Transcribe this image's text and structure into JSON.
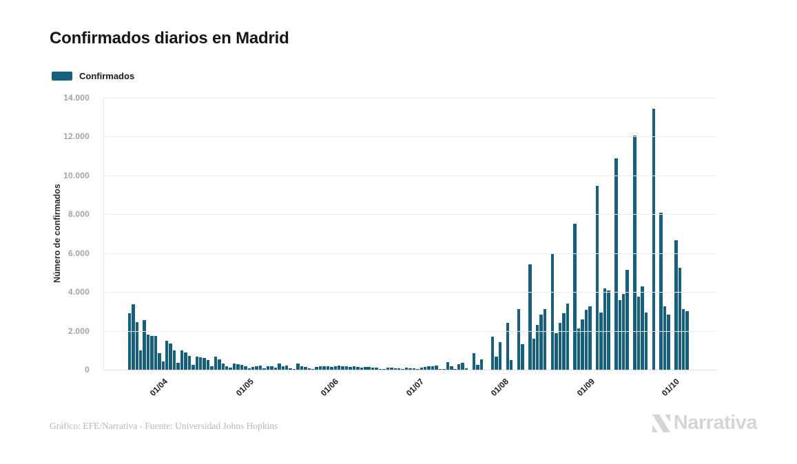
{
  "page": {
    "title": "Confirmados diarios en Madrid",
    "credit": "Gráfico: EFE/Narrativa - Fuente: Universidad Johns Hopkins",
    "brand": "Narrativa"
  },
  "legend": {
    "label": "Confirmados",
    "swatch_color": "#15607e"
  },
  "y_axis": {
    "title": "Número de confirmados",
    "ticks": [
      "14.000",
      "12.000",
      "10.000",
      "8.000",
      "6.000",
      "4.000",
      "2.000",
      "0"
    ]
  },
  "x_axis": {
    "ticks": [
      {
        "label": "01/04",
        "pos": 9.2
      },
      {
        "label": "01/05",
        "pos": 23.3
      },
      {
        "label": "01/06",
        "pos": 37.1
      },
      {
        "label": "01/07",
        "pos": 51.0
      },
      {
        "label": "01/08",
        "pos": 64.8
      },
      {
        "label": "01/09",
        "pos": 78.9
      },
      {
        "label": "01/10",
        "pos": 92.7
      }
    ]
  },
  "chart_data": {
    "type": "bar",
    "title": "Confirmados diarios en Madrid",
    "series_name": "Confirmados",
    "xlabel": "",
    "ylabel": "Número de confirmados",
    "ylim": [
      0,
      14000
    ],
    "grid": "horizontal",
    "legend_position": "top-left",
    "bar_color": "#15607e",
    "x_tick_labels": [
      "01/04",
      "01/05",
      "01/06",
      "01/07",
      "01/08",
      "01/09",
      "01/10"
    ],
    "x_description": "Daily confirmed-case bars for Madrid from late March 2020 to early October 2020; x ticks mark the first day of each month (dd/mm); zeros are days with no reported data.",
    "values": [
      2915,
      3350,
      2445,
      985,
      2565,
      1800,
      1750,
      1750,
      855,
      420,
      1480,
      1365,
      1010,
      365,
      1010,
      890,
      715,
      250,
      660,
      640,
      620,
      480,
      190,
      660,
      540,
      310,
      190,
      105,
      310,
      270,
      250,
      190,
      70,
      130,
      190,
      210,
      70,
      190,
      165,
      105,
      310,
      165,
      210,
      70,
      25,
      330,
      190,
      130,
      70,
      25,
      150,
      190,
      165,
      165,
      130,
      190,
      210,
      165,
      165,
      130,
      190,
      150,
      95,
      150,
      130,
      110,
      95,
      45,
      20,
      95,
      95,
      70,
      80,
      25,
      95,
      70,
      70,
      20,
      95,
      130,
      165,
      190,
      225,
      20,
      50,
      390,
      190,
      25,
      270,
      340,
      60,
      0,
      855,
      250,
      540,
      0,
      0,
      1715,
      660,
      1420,
      0,
      2420,
      480,
      0,
      3130,
      1300,
      0,
      5420,
      1600,
      2300,
      2830,
      3130,
      0,
      6000,
      1890,
      2420,
      2890,
      3420,
      0,
      7530,
      2125,
      2600,
      3070,
      3245,
      0,
      9475,
      2950,
      4185,
      4070,
      0,
      10885,
      3595,
      3890,
      5125,
      0,
      12060,
      3775,
      4300,
      2950,
      0,
      13450,
      0,
      8065,
      3245,
      2830,
      0,
      6655,
      5245,
      3130,
      3020,
      0
    ]
  }
}
